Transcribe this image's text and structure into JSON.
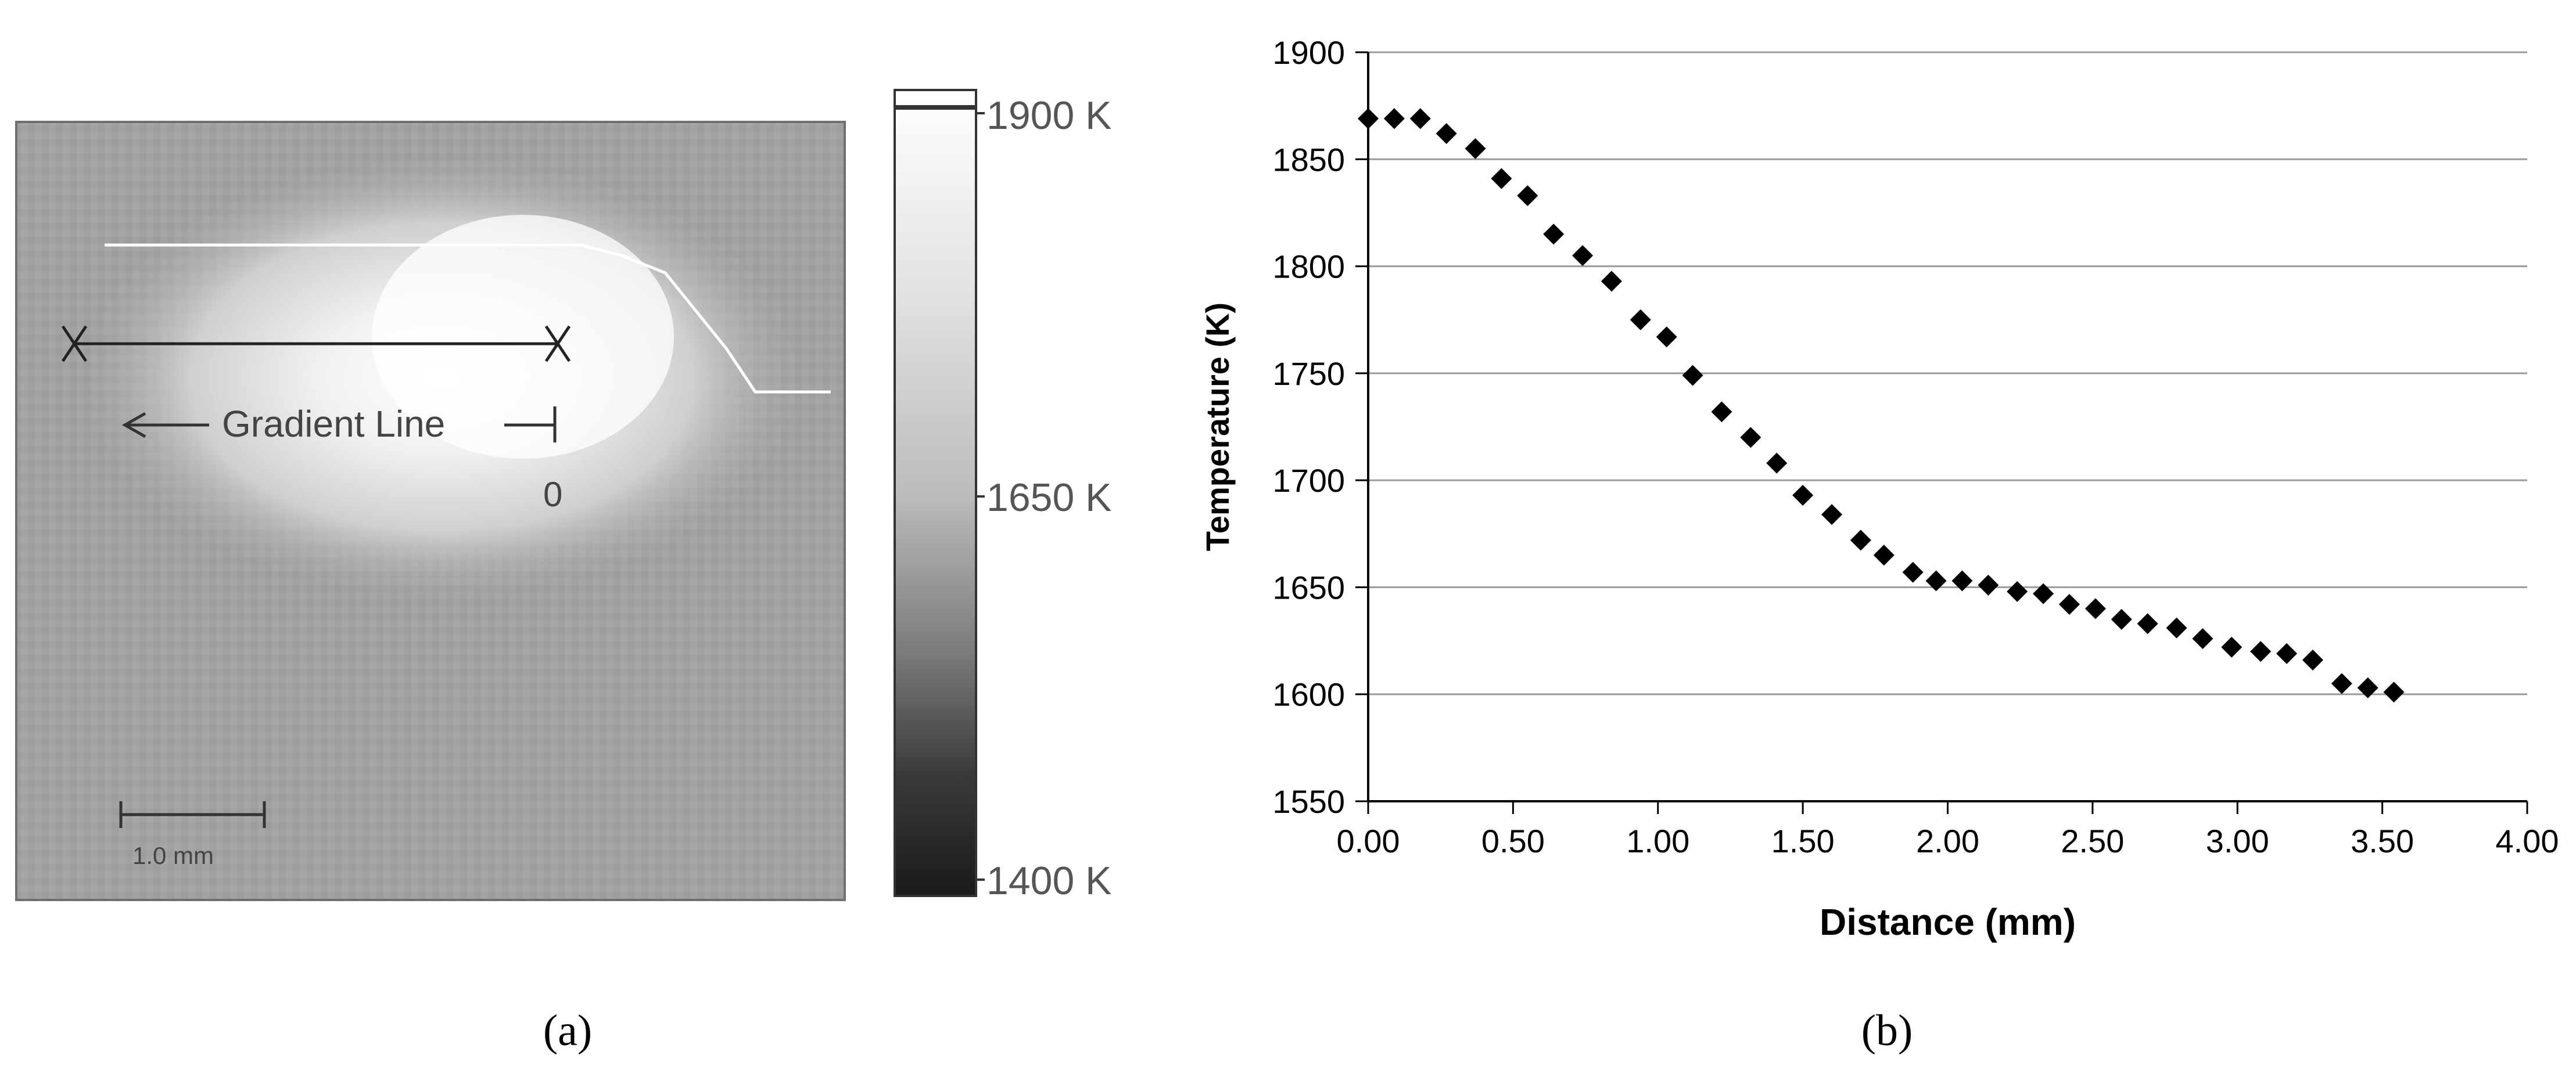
{
  "panel_a": {
    "gradient_line_label": "Gradient Line",
    "origin_label": "0",
    "scale_bar_label": "1.0 mm",
    "colorbar": {
      "max_label": "1900 K",
      "mid_label": "1650 K",
      "min_label": "1400 K"
    },
    "caption": "(a)"
  },
  "panel_b": {
    "caption": "(b)"
  },
  "chart_data": {
    "type": "scatter",
    "title": "",
    "xlabel": "Distance (mm)",
    "ylabel": "Temperature (K)",
    "xlim": [
      0,
      4
    ],
    "ylim": [
      1550,
      1900
    ],
    "x_ticks": [
      "0.00",
      "0.50",
      "1.00",
      "1.50",
      "2.00",
      "2.50",
      "3.00",
      "3.50",
      "4.00"
    ],
    "y_ticks": [
      "1550",
      "1600",
      "1650",
      "1700",
      "1750",
      "1800",
      "1850",
      "1900"
    ],
    "grid": "horizontal",
    "marker": "diamond",
    "marker_color": "#000000",
    "points": [
      [
        0.0,
        1869
      ],
      [
        0.09,
        1869
      ],
      [
        0.18,
        1869
      ],
      [
        0.27,
        1862
      ],
      [
        0.37,
        1855
      ],
      [
        0.46,
        1841
      ],
      [
        0.55,
        1833
      ],
      [
        0.64,
        1815
      ],
      [
        0.74,
        1805
      ],
      [
        0.84,
        1793
      ],
      [
        0.94,
        1775
      ],
      [
        1.03,
        1767
      ],
      [
        1.12,
        1749
      ],
      [
        1.22,
        1732
      ],
      [
        1.32,
        1720
      ],
      [
        1.41,
        1708
      ],
      [
        1.5,
        1693
      ],
      [
        1.6,
        1684
      ],
      [
        1.7,
        1672
      ],
      [
        1.78,
        1665
      ],
      [
        1.88,
        1657
      ],
      [
        1.96,
        1653
      ],
      [
        2.05,
        1653
      ],
      [
        2.14,
        1651
      ],
      [
        2.24,
        1648
      ],
      [
        2.33,
        1647
      ],
      [
        2.42,
        1642
      ],
      [
        2.51,
        1640
      ],
      [
        2.6,
        1635
      ],
      [
        2.69,
        1633
      ],
      [
        2.79,
        1631
      ],
      [
        2.88,
        1626
      ],
      [
        2.98,
        1622
      ],
      [
        3.08,
        1620
      ],
      [
        3.17,
        1619
      ],
      [
        3.26,
        1616
      ],
      [
        3.36,
        1605
      ],
      [
        3.45,
        1603
      ],
      [
        3.54,
        1601
      ]
    ]
  }
}
